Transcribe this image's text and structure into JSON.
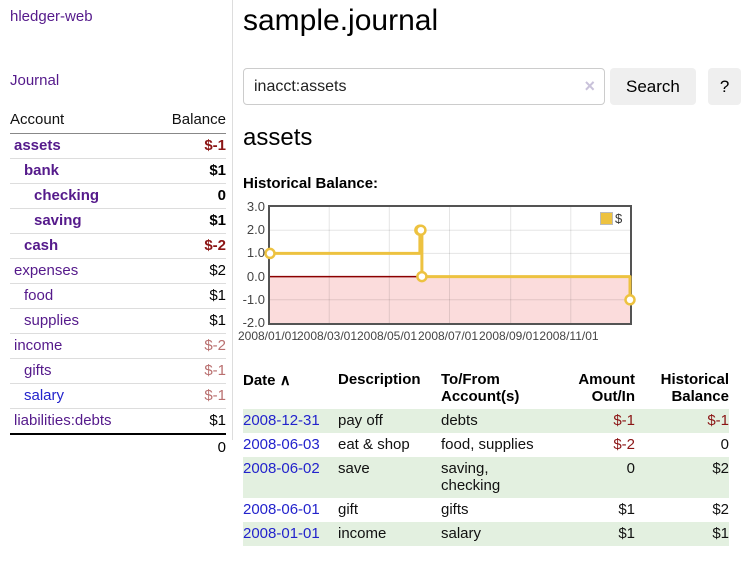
{
  "sidebar": {
    "brand": "hledger-web",
    "journal_label": "Journal",
    "accounts": {
      "headers": [
        "Account",
        "Balance"
      ],
      "rows": [
        {
          "account": "assets",
          "balance": "$-1",
          "depth": 1,
          "in_query": true,
          "balance_class": "neg"
        },
        {
          "account": "bank",
          "balance": "$1",
          "depth": 2,
          "in_query": true,
          "balance_class": ""
        },
        {
          "account": "checking",
          "balance": "0",
          "depth": 3,
          "in_query": true,
          "balance_class": ""
        },
        {
          "account": "saving",
          "balance": "$1",
          "depth": 3,
          "in_query": true,
          "balance_class": ""
        },
        {
          "account": "cash",
          "balance": "$-2",
          "depth": 2,
          "in_query": true,
          "balance_class": "neg"
        },
        {
          "account": "expenses",
          "balance": "$2",
          "depth": 1,
          "in_query": false,
          "balance_class": ""
        },
        {
          "account": "food",
          "balance": "$1",
          "depth": 2,
          "in_query": false,
          "balance_class": ""
        },
        {
          "account": "supplies",
          "balance": "$1",
          "depth": 2,
          "in_query": false,
          "balance_class": ""
        },
        {
          "account": "income",
          "balance": "$-2",
          "depth": 1,
          "in_query": false,
          "balance_class": "neg-faint"
        },
        {
          "account": "gifts",
          "balance": "$-1",
          "depth": 2,
          "in_query": false,
          "balance_class": "neg-faint"
        },
        {
          "account": "salary",
          "balance": "$-1",
          "depth": 2,
          "in_query": false,
          "balance_class": "neg-faint",
          "link_class": "blue"
        },
        {
          "account": "liabilities:debts",
          "balance": "$1",
          "depth": 1,
          "in_query": false,
          "balance_class": ""
        }
      ],
      "total": "0"
    }
  },
  "main": {
    "title": "sample.journal",
    "search": {
      "value": "inacct:assets",
      "clear_icon": "×",
      "button_label": "Search",
      "help_label": "?"
    },
    "account_heading": "assets",
    "chart_label": "Historical Balance:"
  },
  "chart_data": {
    "type": "line",
    "step": true,
    "title": "Historical Balance",
    "series": [
      {
        "name": "$",
        "x": [
          "2008-01-01",
          "2008-06-01",
          "2008-06-02",
          "2008-06-03",
          "2008-12-31"
        ],
        "y": [
          1,
          2,
          2,
          0,
          -1
        ]
      }
    ],
    "xlim": [
      "2008-01-01",
      "2008-12-31"
    ],
    "ylim": [
      -2,
      3
    ],
    "x_ticks": [
      {
        "date": "2008-01-01",
        "label": "2008/01/01"
      },
      {
        "date": "2008-03-01",
        "label": "2008/03/01"
      },
      {
        "date": "2008-05-01",
        "label": "2008/05/01"
      },
      {
        "date": "2008-07-01",
        "label": "2008/07/01"
      },
      {
        "date": "2008-09-01",
        "label": "2008/09/01"
      },
      {
        "date": "2008-11-01",
        "label": "2008/11/01"
      }
    ],
    "y_ticks": [
      {
        "v": 3,
        "label": "3.0"
      },
      {
        "v": 2,
        "label": "2.0"
      },
      {
        "v": 1,
        "label": "1.0"
      },
      {
        "v": 0,
        "label": "0.0"
      },
      {
        "v": -1,
        "label": "-1.0"
      },
      {
        "v": -2,
        "label": "-2.0"
      }
    ],
    "grid": true,
    "legend_position": "top-right",
    "line_color": "#edc240",
    "marker_fill": "#ffffff",
    "negative_region_color": "#fbdcdc",
    "zero_line_color": "#8b0000"
  },
  "register": {
    "sort_icon": "∧",
    "headers": [
      "Date",
      "Description",
      "To/From\nAccount(s)",
      "Amount\nOut/In",
      "Historical\nBalance"
    ],
    "rows": [
      {
        "date": "2008-12-31",
        "description": "pay off",
        "accounts": "debts",
        "amount": "$-1",
        "amount_class": "neg",
        "balance": "$-1",
        "balance_class": "neg"
      },
      {
        "date": "2008-06-03",
        "description": "eat & shop",
        "accounts": "food, supplies",
        "amount": "$-2",
        "amount_class": "neg",
        "balance": "0",
        "balance_class": ""
      },
      {
        "date": "2008-06-02",
        "description": "save",
        "accounts": "saving,\nchecking",
        "amount": "0",
        "amount_class": "",
        "balance": "$2",
        "balance_class": ""
      },
      {
        "date": "2008-06-01",
        "description": "gift",
        "accounts": "gifts",
        "amount": "$1",
        "amount_class": "",
        "balance": "$2",
        "balance_class": ""
      },
      {
        "date": "2008-01-01",
        "description": "income",
        "accounts": "salary",
        "amount": "$1",
        "amount_class": "",
        "balance": "$1",
        "balance_class": ""
      }
    ]
  },
  "colors": {
    "link_purple": "#551a8b",
    "link_blue": "#2323cc",
    "negative": "#8b1515",
    "negative_faint": "#b96f6f",
    "row_stripe_green": "#e3f0e0",
    "chart_line_gold": "#edc240",
    "chart_negative_fill": "#fbdcdc",
    "chart_zero_line": "#8b0000"
  }
}
